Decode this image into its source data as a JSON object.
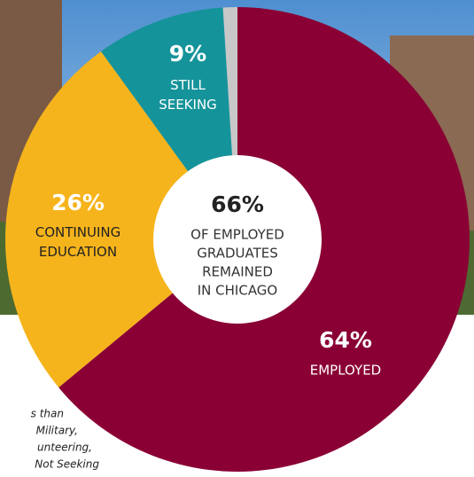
{
  "chart_data": {
    "type": "pie",
    "categories": [
      "EMPLOYED",
      "CONTINUING EDUCATION",
      "STILL SEEKING",
      null
    ],
    "values": [
      64,
      26,
      9,
      1
    ],
    "value_labels": [
      "64%",
      "26%",
      "9%",
      null
    ],
    "colors": [
      "#8a0034",
      "#f6b41c",
      "#15939a",
      "#c8c8c8"
    ],
    "center": {
      "value": 66,
      "label": "66%",
      "lines": [
        "OF EMPLOYED",
        "GRADUATES",
        "REMAINED",
        "IN CHICAGO"
      ]
    },
    "footnote": [
      "s than",
      "Military,",
      "unteering,",
      "Not Seeking"
    ]
  }
}
